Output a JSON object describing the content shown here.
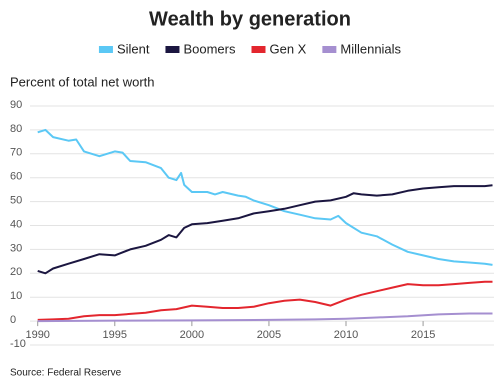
{
  "chart_data": {
    "type": "line",
    "title": "Wealth by generation",
    "y_label": "Percent of total net worth",
    "source": "Source: Federal Reserve",
    "xlim": [
      1989.5,
      2019.6
    ],
    "xticks": [
      1990,
      1995,
      2000,
      2005,
      2010,
      2015
    ],
    "ylim": [
      -10,
      90
    ],
    "yticks": [
      -10,
      0,
      10,
      20,
      30,
      40,
      50,
      60,
      70,
      80,
      90
    ],
    "grid": true,
    "legend": "top",
    "series": [
      {
        "name": "Silent",
        "color": "#5bc8f5",
        "x": [
          1990,
          1990.5,
          1991,
          1992,
          1992.5,
          1993,
          1994,
          1995,
          1995.5,
          1996,
          1997,
          1998,
          1998.5,
          1999,
          1999.3,
          1999.5,
          2000,
          2001,
          2001.5,
          2002,
          2003,
          2003.5,
          2004,
          2005,
          2006,
          2007,
          2008,
          2009,
          2009.5,
          2010,
          2011,
          2012,
          2013,
          2014,
          2015,
          2016,
          2017,
          2018,
          2019,
          2019.5
        ],
        "values": [
          79,
          80,
          77,
          75.5,
          76,
          71,
          69,
          71,
          70.5,
          67,
          66.5,
          64,
          60,
          59,
          62,
          57,
          54,
          54,
          53,
          54,
          52.5,
          52,
          50.5,
          48.5,
          46,
          44.5,
          43,
          42.5,
          44,
          41,
          37,
          35.5,
          32,
          29,
          27.5,
          26,
          25,
          24.5,
          24,
          23.5
        ]
      },
      {
        "name": "Boomers",
        "color": "#1b1640",
        "x": [
          1990,
          1990.5,
          1991,
          1992,
          1993,
          1994,
          1995,
          1996,
          1997,
          1998,
          1998.5,
          1999,
          1999.5,
          2000,
          2001,
          2002,
          2003,
          2004,
          2005,
          2006,
          2007,
          2008,
          2009,
          2010,
          2010.5,
          2011,
          2012,
          2013,
          2014,
          2015,
          2016,
          2017,
          2018,
          2019,
          2019.5
        ],
        "values": [
          21,
          20,
          22,
          24,
          26,
          28,
          27.5,
          30,
          31.5,
          34,
          36,
          35,
          39,
          40.5,
          41,
          42,
          43,
          45,
          46,
          47,
          48.5,
          50,
          50.5,
          52,
          53.5,
          53,
          52.5,
          53,
          54.5,
          55.5,
          56,
          56.5,
          56.5,
          56.5,
          56.8
        ]
      },
      {
        "name": "Gen X",
        "color": "#e3262e",
        "x": [
          1990,
          1991,
          1992,
          1993,
          1994,
          1995,
          1996,
          1997,
          1998,
          1999,
          2000,
          2001,
          2002,
          2003,
          2004,
          2005,
          2006,
          2007,
          2008,
          2009,
          2010,
          2011,
          2012,
          2013,
          2014,
          2015,
          2016,
          2017,
          2018,
          2019,
          2019.5
        ],
        "values": [
          0.5,
          0.7,
          1,
          2,
          2.5,
          2.5,
          3,
          3.5,
          4.5,
          5,
          6.5,
          6,
          5.5,
          5.5,
          6,
          7.5,
          8.5,
          9,
          8,
          6.5,
          9,
          11,
          12.5,
          14,
          15.5,
          15,
          15,
          15.5,
          16,
          16.5,
          16.5
        ]
      },
      {
        "name": "Millennials",
        "color": "#a58fd0",
        "x": [
          1990,
          1995,
          2000,
          2005,
          2008,
          2010,
          2012,
          2014,
          2016,
          2018,
          2019.5
        ],
        "values": [
          0,
          0.2,
          0.3,
          0.5,
          0.7,
          1,
          1.5,
          2,
          2.8,
          3.2,
          3.2
        ]
      }
    ]
  }
}
